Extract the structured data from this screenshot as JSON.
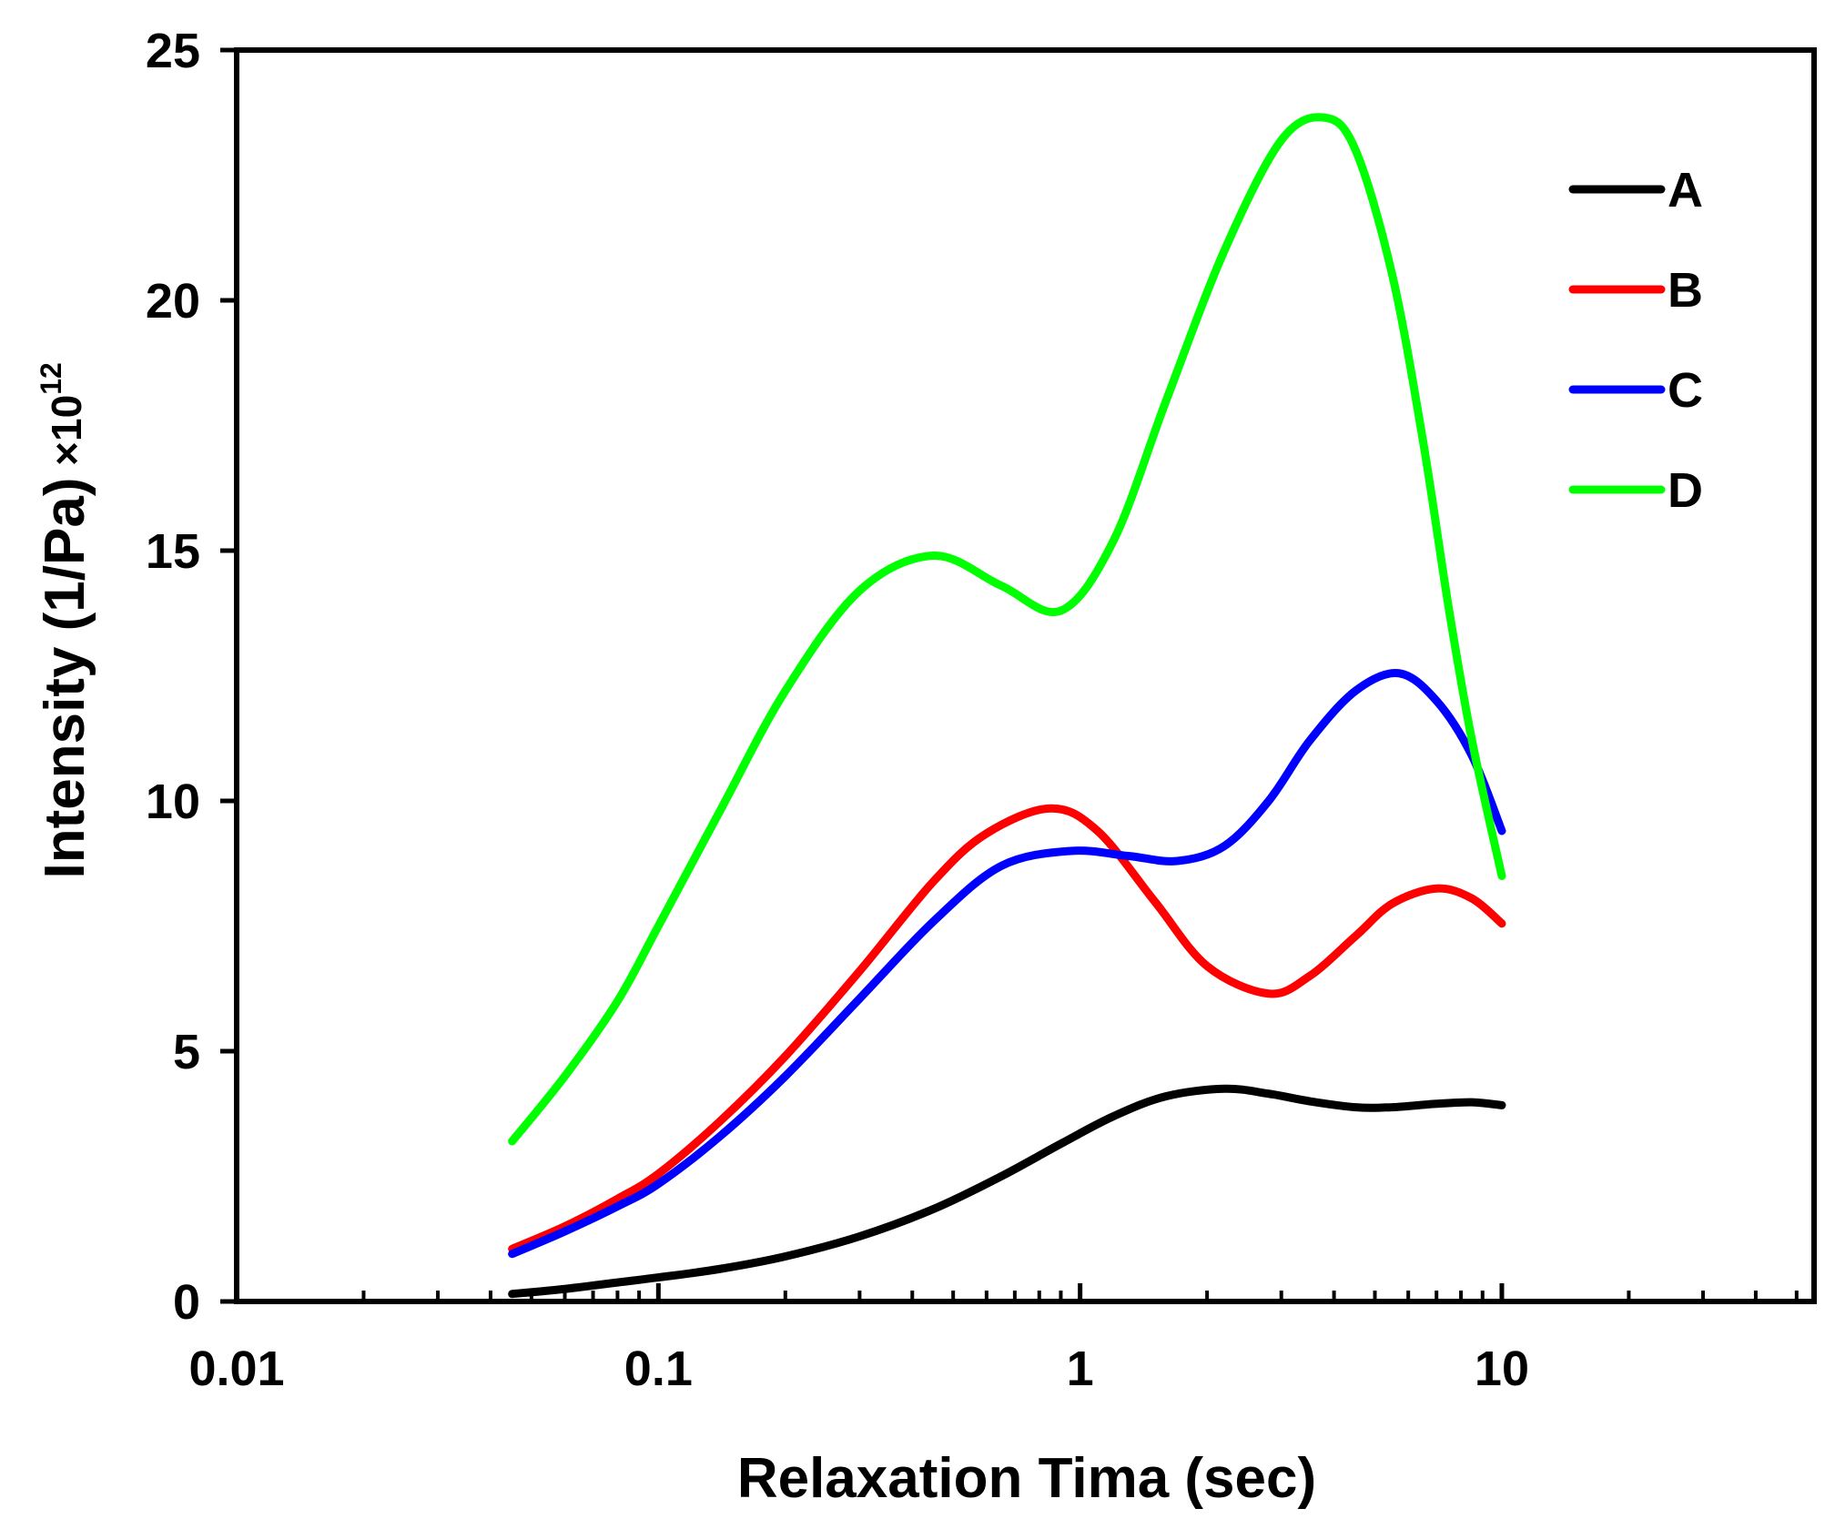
{
  "chart_data": {
    "type": "line",
    "title": "",
    "xlabel": "Relaxation Tima (sec)",
    "ylabel": "Intensity (1/Pa)",
    "y_multiplier": {
      "base": "×10",
      "exponent": "12"
    },
    "x_scale": "log",
    "xlim": [
      0.01,
      55
    ],
    "ylim": [
      0,
      25
    ],
    "x_ticks": [
      {
        "value": 0.01,
        "label": "0.01"
      },
      {
        "value": 0.1,
        "label": "0.1"
      },
      {
        "value": 1,
        "label": "1"
      },
      {
        "value": 10,
        "label": "10"
      }
    ],
    "y_ticks": [
      {
        "value": 0,
        "label": "0"
      },
      {
        "value": 5,
        "label": "5"
      },
      {
        "value": 10,
        "label": "10"
      },
      {
        "value": 15,
        "label": "15"
      },
      {
        "value": 20,
        "label": "20"
      },
      {
        "value": 25,
        "label": "25"
      }
    ],
    "grid": false,
    "legend_position": "top-right",
    "series": [
      {
        "name": "A",
        "color": "#000000",
        "x": [
          0.045,
          0.06,
          0.08,
          0.1,
          0.14,
          0.2,
          0.3,
          0.45,
          0.65,
          0.9,
          1.2,
          1.6,
          2.2,
          2.8,
          3.5,
          4.5,
          5.5,
          7,
          8.5,
          10
        ],
        "y": [
          0.15,
          0.25,
          0.38,
          0.48,
          0.65,
          0.9,
          1.3,
          1.85,
          2.5,
          3.15,
          3.7,
          4.1,
          4.25,
          4.15,
          4.0,
          3.88,
          3.88,
          3.95,
          3.98,
          3.92
        ]
      },
      {
        "name": "B",
        "color": "#ff0000",
        "x": [
          0.045,
          0.06,
          0.08,
          0.1,
          0.14,
          0.2,
          0.3,
          0.45,
          0.6,
          0.85,
          1.1,
          1.5,
          2.0,
          2.8,
          3.5,
          4.5,
          5.5,
          7,
          8.5,
          10
        ],
        "y": [
          1.05,
          1.5,
          2.05,
          2.55,
          3.6,
          4.9,
          6.6,
          8.4,
          9.35,
          9.85,
          9.4,
          8.0,
          6.7,
          6.15,
          6.5,
          7.3,
          7.95,
          8.25,
          8.05,
          7.55
        ]
      },
      {
        "name": "C",
        "color": "#0000ff",
        "x": [
          0.045,
          0.06,
          0.08,
          0.1,
          0.14,
          0.2,
          0.3,
          0.45,
          0.65,
          0.95,
          1.3,
          1.7,
          2.2,
          2.8,
          3.5,
          4.5,
          5.7,
          7,
          8.5,
          10
        ],
        "y": [
          0.95,
          1.4,
          1.9,
          2.35,
          3.3,
          4.5,
          6.05,
          7.6,
          8.7,
          9.0,
          8.9,
          8.8,
          9.1,
          10.0,
          11.2,
          12.2,
          12.55,
          12.0,
          10.9,
          9.4
        ]
      },
      {
        "name": "D",
        "color": "#00ff00",
        "x": [
          0.045,
          0.06,
          0.08,
          0.1,
          0.14,
          0.2,
          0.3,
          0.45,
          0.65,
          0.9,
          1.2,
          1.6,
          2.2,
          3.0,
          3.8,
          4.5,
          5.5,
          6.5,
          7.5,
          8.5,
          10
        ],
        "y": [
          3.2,
          4.5,
          6.0,
          7.5,
          9.8,
          12.2,
          14.2,
          14.9,
          14.3,
          13.8,
          15.2,
          18.0,
          21.0,
          23.2,
          23.65,
          23.0,
          20.5,
          17.2,
          13.8,
          11.2,
          8.5
        ]
      }
    ]
  }
}
